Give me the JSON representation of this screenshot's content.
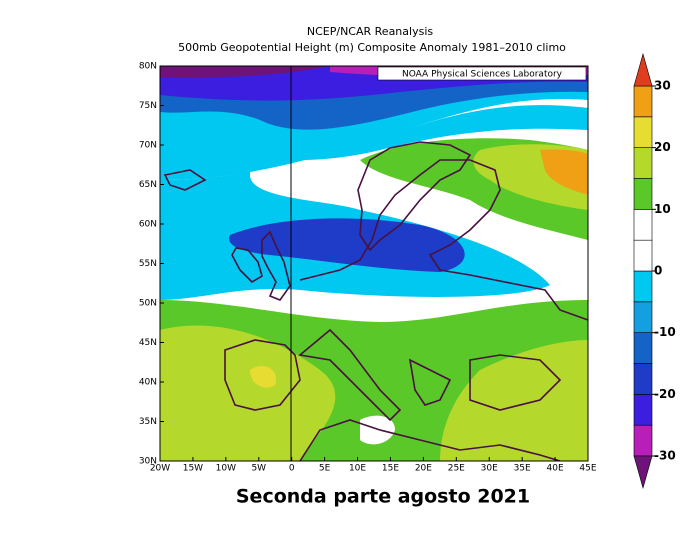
{
  "header": {
    "title": "NCEP/NCAR Reanalysis",
    "subtitle": "500mb Geopotential Height (m) Composite Anomaly 1981–2010 climo"
  },
  "credit": "NOAA Physical Sciences Laboratory",
  "caption": "Seconda parte agosto 2021",
  "map": {
    "xlim": [
      -20,
      45
    ],
    "ylim": [
      30,
      80
    ],
    "xticks": [
      {
        "value": -20,
        "label": "20W"
      },
      {
        "value": -15,
        "label": "15W"
      },
      {
        "value": -10,
        "label": "10W"
      },
      {
        "value": -5,
        "label": "5W"
      },
      0,
      {
        "value": 5,
        "label": "5E"
      },
      {
        "value": 10,
        "label": "10E"
      },
      {
        "value": 15,
        "label": "15E"
      },
      {
        "value": 20,
        "label": "20E"
      },
      {
        "value": 25,
        "label": "25E"
      },
      {
        "value": 30,
        "label": "30E"
      },
      {
        "value": 35,
        "label": "35E"
      },
      {
        "value": 40,
        "label": "40E"
      },
      {
        "value": 45,
        "label": "45E"
      }
    ],
    "yticks": [
      {
        "value": 30,
        "label": "30N"
      },
      {
        "value": 35,
        "label": "35N"
      },
      {
        "value": 40,
        "label": "40N"
      },
      {
        "value": 45,
        "label": "45N"
      },
      {
        "value": 50,
        "label": "50N"
      },
      {
        "value": 55,
        "label": "55N"
      },
      {
        "value": 60,
        "label": "60N"
      },
      {
        "value": 65,
        "label": "65N"
      },
      {
        "value": 70,
        "label": "70N"
      },
      {
        "value": 75,
        "label": "75N"
      },
      {
        "value": 80,
        "label": "80N"
      }
    ]
  },
  "colorbar": {
    "lim": [
      -30,
      30
    ],
    "ticks": [
      -30,
      -20,
      -10,
      0,
      10,
      20,
      30
    ],
    "colors": [
      "#b81eb8",
      "#3c1ee0",
      "#1e3cc8",
      "#1464c8",
      "#14a0e0",
      "#00c8f0",
      "#ffffff",
      "#ffffff",
      "#5ac828",
      "#b4d82c",
      "#e6dc32",
      "#f0a014"
    ],
    "under_color": "#6e1478",
    "over_color": "#e03c1e"
  }
}
